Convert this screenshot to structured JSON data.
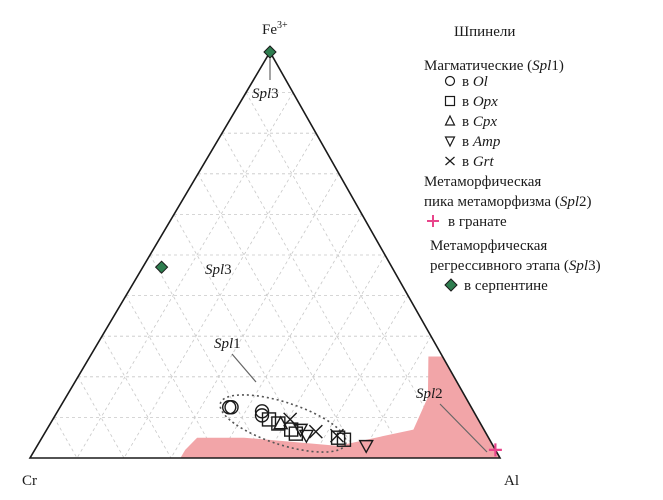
{
  "chart_data": {
    "type": "scatter",
    "diagram": "ternary",
    "vertices": {
      "top": "Fe",
      "top_sup": "3+",
      "left": "Cr",
      "right": "Al"
    },
    "grid": true,
    "legend_position": "right",
    "legend": {
      "title": "Шпинели",
      "group1": {
        "label": "Магматические (",
        "label_it": "Spl",
        "label_end": "1)"
      },
      "group1_items": [
        {
          "symbol": "circle",
          "prefix": "в",
          "host": "Ol"
        },
        {
          "symbol": "square",
          "prefix": "в",
          "host": "Opx"
        },
        {
          "symbol": "triangle-up",
          "prefix": "в",
          "host": "Cpx"
        },
        {
          "symbol": "triangle-down",
          "prefix": "в",
          "host": "Amp"
        },
        {
          "symbol": "cross",
          "prefix": "в",
          "host": "Grt"
        }
      ],
      "group2": {
        "line1": "Метаморфическая",
        "line2": "пика метаморфизма (",
        "line2_it": "Spl",
        "line2_end": "2)",
        "item": "в гранате"
      },
      "group3": {
        "line1": "Метаморфическая",
        "line2": "регрессивного этапа (",
        "line2_it": "Spl",
        "line2_end": "3)",
        "item": "в серпентине"
      }
    },
    "annotations": [
      {
        "name_it": "Spl",
        "name_end": "3",
        "target": "spl3-top"
      },
      {
        "name_it": "Spl",
        "name_end": "3",
        "target": "spl3-mid"
      },
      {
        "name_it": "Spl",
        "name_end": "1",
        "target": "spl1-cluster"
      },
      {
        "name_it": "Spl",
        "name_end": "2",
        "target": "spl2-field"
      }
    ],
    "colors": {
      "spl2_field": "#f2a5a8",
      "spl2_marker": "#e8458b",
      "spl3_marker": "#2e7d4f",
      "grid": "#c8c8c8"
    },
    "series": [
      {
        "name": "Spl3",
        "marker": "diamond",
        "points": [
          {
            "fe": 1.0,
            "cr": 0.0,
            "al": 0.0
          },
          {
            "fe": 0.47,
            "cr": 0.49,
            "al": 0.04
          }
        ]
      },
      {
        "name": "Spl1 Ol",
        "marker": "circle",
        "points": [
          {
            "fe": 0.125,
            "cr": 0.515,
            "al": 0.36
          },
          {
            "fe": 0.125,
            "cr": 0.51,
            "al": 0.365
          },
          {
            "fe": 0.105,
            "cr": 0.455,
            "al": 0.44
          },
          {
            "fe": 0.115,
            "cr": 0.45,
            "al": 0.435
          }
        ]
      },
      {
        "name": "Spl1 Opx",
        "marker": "square",
        "points": [
          {
            "fe": 0.095,
            "cr": 0.445,
            "al": 0.46
          },
          {
            "fe": 0.085,
            "cr": 0.43,
            "al": 0.485
          },
          {
            "fe": 0.07,
            "cr": 0.41,
            "al": 0.52
          },
          {
            "fe": 0.06,
            "cr": 0.405,
            "al": 0.535
          },
          {
            "fe": 0.05,
            "cr": 0.32,
            "al": 0.63
          },
          {
            "fe": 0.045,
            "cr": 0.31,
            "al": 0.645
          }
        ]
      },
      {
        "name": "Spl1 Cpx",
        "marker": "triangle-up",
        "points": [
          {
            "fe": 0.085,
            "cr": 0.425,
            "al": 0.49
          }
        ]
      },
      {
        "name": "Spl1 Amp",
        "marker": "triangle-down",
        "points": [
          {
            "fe": 0.07,
            "cr": 0.39,
            "al": 0.54
          },
          {
            "fe": 0.055,
            "cr": 0.385,
            "al": 0.56
          },
          {
            "fe": 0.03,
            "cr": 0.27,
            "al": 0.7
          }
        ]
      },
      {
        "name": "Spl1 Grt",
        "marker": "cross",
        "points": [
          {
            "fe": 0.095,
            "cr": 0.4,
            "al": 0.505
          },
          {
            "fe": 0.065,
            "cr": 0.36,
            "al": 0.575
          },
          {
            "fe": 0.055,
            "cr": 0.32,
            "al": 0.625
          }
        ]
      },
      {
        "name": "Spl2",
        "marker": "plus",
        "points": [
          {
            "fe": 0.02,
            "cr": 0.0,
            "al": 0.98
          }
        ]
      }
    ],
    "spl2_field": [
      {
        "fe": 0.02,
        "cr": 0.66,
        "al": 0.32
      },
      {
        "fe": 0.05,
        "cr": 0.62,
        "al": 0.33
      },
      {
        "fe": 0.05,
        "cr": 0.52,
        "al": 0.43
      },
      {
        "fe": 0.03,
        "cr": 0.33,
        "al": 0.64
      },
      {
        "fe": 0.07,
        "cr": 0.15,
        "al": 0.78
      },
      {
        "fe": 0.15,
        "cr": 0.08,
        "al": 0.77
      },
      {
        "fe": 0.25,
        "cr": 0.03,
        "al": 0.72
      },
      {
        "fe": 0.25,
        "cr": 0.0,
        "al": 0.75
      },
      {
        "fe": 0.0,
        "cr": 0.0,
        "al": 1.0
      },
      {
        "fe": 0.0,
        "cr": 0.68,
        "al": 0.32
      }
    ],
    "spl1_ellipse": {
      "center": {
        "fe": 0.085,
        "cr": 0.42,
        "al": 0.495
      },
      "rx_frac": 0.14,
      "ry_frac": 0.045,
      "rotate_deg": 18
    }
  }
}
